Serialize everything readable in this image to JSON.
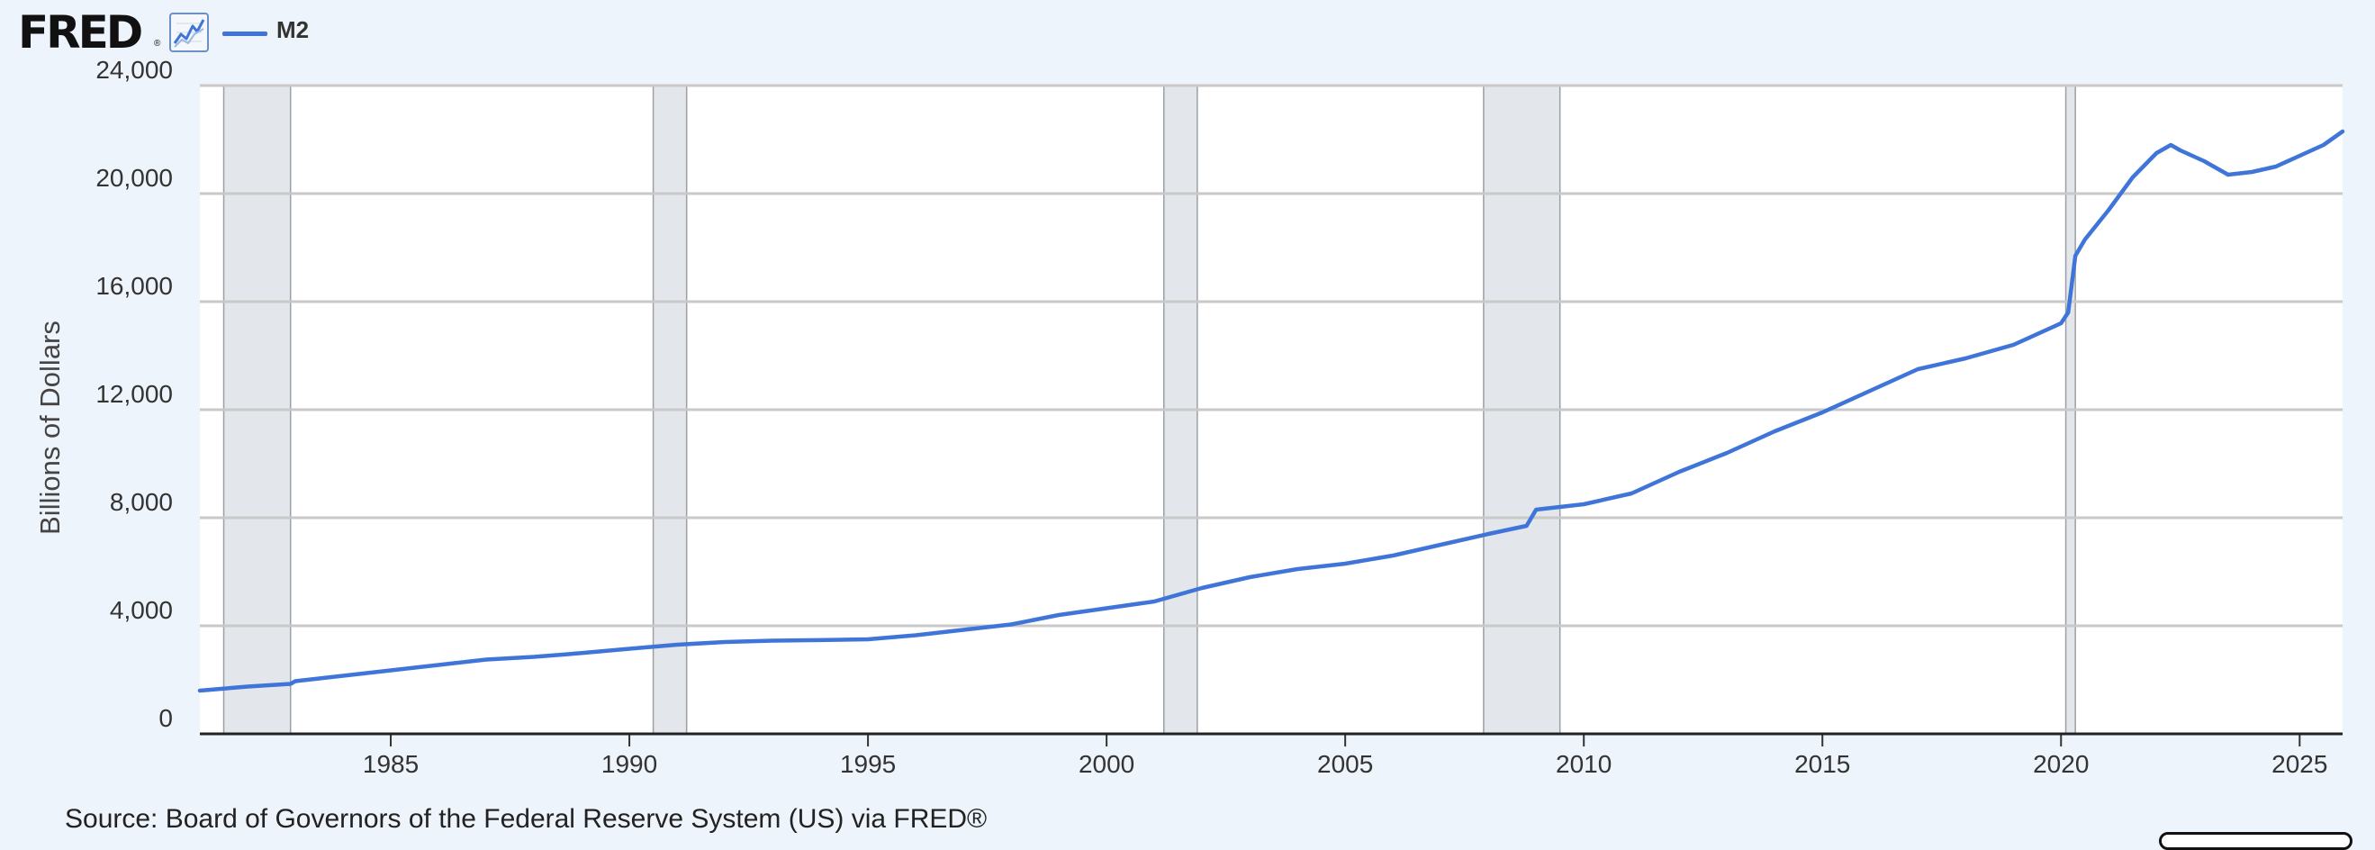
{
  "header": {
    "logo_text": "FRED",
    "logo_registered": "®",
    "graph_icon": "line-chart-icon",
    "legend_label": "M2"
  },
  "source": "Source: Board of Governors of the Federal Reserve System (US) via FRED®",
  "colors": {
    "background": "#eef4fb",
    "plot_background": "#ffffff",
    "line": "#3f75d9",
    "grid": "#c9c9c9",
    "recession_band": "#e3e6ea"
  },
  "chart_data": {
    "type": "line",
    "title": "",
    "xlabel": "",
    "ylabel": "Billions of Dollars",
    "xlim": [
      1981.0,
      2025.9
    ],
    "ylim": [
      0,
      24000
    ],
    "yticks": [
      0,
      4000,
      8000,
      12000,
      16000,
      20000,
      24000
    ],
    "ytick_labels": [
      "0",
      "4,000",
      "8,000",
      "12,000",
      "16,000",
      "20,000",
      "24,000"
    ],
    "xticks": [
      1985,
      1990,
      1995,
      2000,
      2005,
      2010,
      2015,
      2020,
      2025
    ],
    "xtick_labels": [
      "1985",
      "1990",
      "1995",
      "2000",
      "2005",
      "2010",
      "2015",
      "2020",
      "2025"
    ],
    "grid": true,
    "legend": "top-left",
    "recessions": [
      [
        1981.5,
        1982.9
      ],
      [
        1990.5,
        1991.2
      ],
      [
        2001.2,
        2001.9
      ],
      [
        2007.9,
        2009.5
      ],
      [
        2020.1,
        2020.3
      ]
    ],
    "series": [
      {
        "name": "M2",
        "x": [
          1981.0,
          1982.0,
          1982.9,
          1983.0,
          1984.0,
          1985.0,
          1986.0,
          1987.0,
          1988.0,
          1989.0,
          1990.0,
          1991.0,
          1992.0,
          1993.0,
          1994.0,
          1995.0,
          1996.0,
          1997.0,
          1998.0,
          1999.0,
          2000.0,
          2001.0,
          2002.0,
          2003.0,
          2004.0,
          2005.0,
          2006.0,
          2007.0,
          2008.0,
          2008.8,
          2009.0,
          2010.0,
          2011.0,
          2012.0,
          2013.0,
          2014.0,
          2015.0,
          2016.0,
          2017.0,
          2018.0,
          2019.0,
          2020.0,
          2020.15,
          2020.3,
          2020.5,
          2021.0,
          2021.5,
          2022.0,
          2022.3,
          2022.5,
          2023.0,
          2023.5,
          2024.0,
          2024.5,
          2025.0,
          2025.5,
          2025.9
        ],
        "y": [
          1600,
          1750,
          1850,
          1950,
          2150,
          2350,
          2550,
          2750,
          2850,
          2990,
          3150,
          3300,
          3400,
          3450,
          3470,
          3500,
          3650,
          3850,
          4050,
          4400,
          4650,
          4900,
          5400,
          5800,
          6100,
          6300,
          6600,
          7000,
          7400,
          7700,
          8300,
          8500,
          8900,
          9700,
          10400,
          11200,
          11900,
          12700,
          13500,
          13900,
          14400,
          15200,
          15600,
          17700,
          18300,
          19400,
          20600,
          21500,
          21800,
          21600,
          21200,
          20700,
          20800,
          21000,
          21400,
          21800,
          22300
        ]
      }
    ]
  }
}
